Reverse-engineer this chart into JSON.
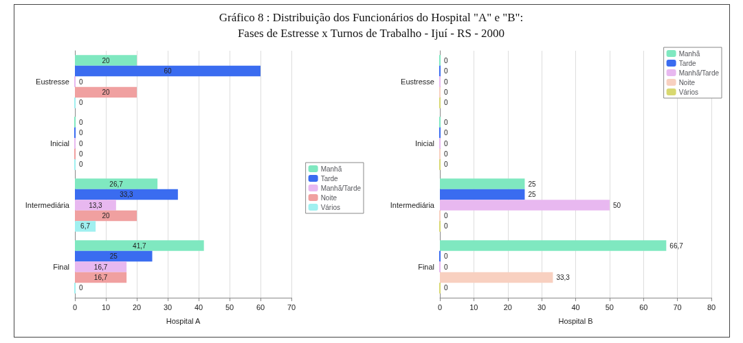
{
  "chart_data": [
    {
      "type": "bar",
      "orientation": "horizontal",
      "title": "Gráfico 8 : Distribuição dos Funcionários do Hospital \"A\" e \"B\":\nFases de Estresse x Turnos de Trabalho - Ijuí - RS - 2000",
      "xlabel": "Hospital A",
      "categories": [
        "Eustresse",
        "Inicial",
        "Intermediária",
        "Final"
      ],
      "series": [
        {
          "name": "Manhã",
          "color": "#7fe8c0",
          "values": [
            20,
            0,
            26.7,
            41.7
          ],
          "value_labels": [
            "20",
            "0",
            "26,7",
            "41,7"
          ]
        },
        {
          "name": "Tarde",
          "color": "#3a6cf0",
          "values": [
            60,
            0,
            33.3,
            25
          ],
          "value_labels": [
            "60",
            "0",
            "33,3",
            "25"
          ]
        },
        {
          "name": "Manhã/Tarde",
          "color": "#e8b8f0",
          "values": [
            0,
            0,
            13.3,
            16.7
          ],
          "value_labels": [
            "0",
            "0",
            "13,3",
            "16,7"
          ]
        },
        {
          "name": "Noite",
          "color": "#f0a0a0",
          "values": [
            20,
            0,
            20,
            16.7
          ],
          "value_labels": [
            "20",
            "0",
            "20",
            "16,7"
          ]
        },
        {
          "name": "Vários",
          "color": "#a0f0f0",
          "values": [
            0,
            0,
            6.7,
            0
          ],
          "value_labels": [
            "0",
            "0",
            "6,7",
            "0"
          ]
        }
      ],
      "xlim": [
        0,
        70
      ],
      "xticks": [
        0,
        10,
        20,
        30,
        40,
        50,
        60,
        70
      ],
      "grid": "x",
      "legend": "right"
    },
    {
      "type": "bar",
      "orientation": "horizontal",
      "xlabel": "Hospital B",
      "categories": [
        "Eustresse",
        "Inicial",
        "Intermediária",
        "Final"
      ],
      "series": [
        {
          "name": "Manhã",
          "color": "#7fe8c0",
          "values": [
            0,
            0,
            25,
            66.7
          ],
          "value_labels": [
            "0",
            "0",
            "25",
            "66,7"
          ]
        },
        {
          "name": "Tarde",
          "color": "#3a6cf0",
          "values": [
            0,
            0,
            25,
            0
          ],
          "value_labels": [
            "0",
            "0",
            "25",
            "0"
          ]
        },
        {
          "name": "Manhã/Tarde",
          "color": "#e8b8f0",
          "values": [
            0,
            0,
            50,
            0
          ],
          "value_labels": [
            "0",
            "0",
            "50",
            "0"
          ]
        },
        {
          "name": "Noite",
          "color": "#f8d0c0",
          "values": [
            0,
            0,
            0,
            33.3
          ],
          "value_labels": [
            "0",
            "0",
            "0",
            "33,3"
          ]
        },
        {
          "name": "Vários",
          "color": "#d8d870",
          "values": [
            0,
            0,
            0,
            0
          ],
          "value_labels": [
            "0",
            "0",
            "0",
            "0"
          ]
        }
      ],
      "xlim": [
        0,
        80
      ],
      "xticks": [
        0,
        10,
        20,
        30,
        40,
        50,
        60,
        70,
        80
      ],
      "grid": "x",
      "legend": "top right"
    }
  ]
}
